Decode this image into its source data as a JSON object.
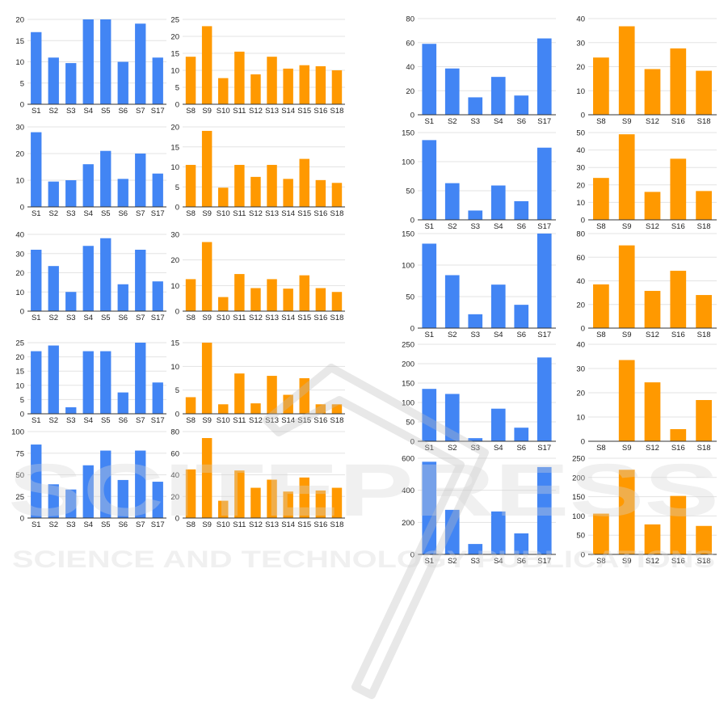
{
  "watermark": {
    "logo_text": "SCITEPRESS",
    "tagline": "SCIENCE AND TECHNOLOGY PUBLICATIONS"
  },
  "colors": {
    "blue": "#4285f4",
    "orange": "#ff9900",
    "grid": "#e3e3e3",
    "axis": "#333333",
    "text": "#222222"
  },
  "chart_data": [
    {
      "type": "bar",
      "color": "blue",
      "categories": [
        "S1",
        "S2",
        "S3",
        "S4",
        "S5",
        "S6",
        "S7",
        "S17"
      ],
      "values": [
        17,
        11,
        9.7,
        20,
        20,
        10,
        19,
        11
      ],
      "ylim": [
        0,
        20
      ],
      "yticks": [
        0,
        5,
        10,
        15,
        20
      ]
    },
    {
      "type": "bar",
      "color": "orange",
      "categories": [
        "S8",
        "S9",
        "S10",
        "S11",
        "S12",
        "S13",
        "S14",
        "S15",
        "S16",
        "S18"
      ],
      "values": [
        14,
        23,
        7.7,
        15.5,
        8.8,
        14,
        10.5,
        11.5,
        11.2,
        10
      ],
      "ylim": [
        0,
        25
      ],
      "yticks": [
        0,
        5,
        10,
        15,
        20,
        25
      ]
    },
    {
      "type": "bar",
      "color": "blue",
      "categories": [
        "S1",
        "S2",
        "S3",
        "S4",
        "S6",
        "S17"
      ],
      "values": [
        59,
        38.5,
        14.5,
        31.5,
        16,
        63.5
      ],
      "ylim": [
        0,
        80
      ],
      "yticks": [
        0,
        20,
        40,
        60,
        80
      ]
    },
    {
      "type": "bar",
      "color": "orange",
      "categories": [
        "S8",
        "S9",
        "S12",
        "S16",
        "S18"
      ],
      "values": [
        23.8,
        36.8,
        19,
        27.6,
        18.3
      ],
      "ylim": [
        0,
        40
      ],
      "yticks": [
        0,
        10,
        20,
        30,
        40
      ]
    },
    {
      "type": "bar",
      "color": "blue",
      "categories": [
        "S1",
        "S2",
        "S3",
        "S4",
        "S5",
        "S6",
        "S7",
        "S17"
      ],
      "values": [
        28,
        9.5,
        10,
        16,
        21,
        10.5,
        20,
        12.5
      ],
      "ylim": [
        0,
        30
      ],
      "yticks": [
        0,
        10,
        20,
        30
      ]
    },
    {
      "type": "bar",
      "color": "orange",
      "categories": [
        "S8",
        "S9",
        "S10",
        "S11",
        "S12",
        "S13",
        "S14",
        "S15",
        "S16",
        "S18"
      ],
      "values": [
        10.5,
        19,
        4.8,
        10.5,
        7.5,
        10.5,
        7,
        12,
        6.7,
        6
      ],
      "ylim": [
        0,
        20
      ],
      "yticks": [
        0,
        5,
        10,
        15,
        20
      ]
    },
    {
      "type": "bar",
      "color": "blue",
      "categories": [
        "S1",
        "S2",
        "S3",
        "S4",
        "S6",
        "S17"
      ],
      "values": [
        137,
        63,
        16,
        59,
        32,
        124
      ],
      "ylim": [
        0,
        150
      ],
      "yticks": [
        0,
        50,
        100,
        150
      ]
    },
    {
      "type": "bar",
      "color": "orange",
      "categories": [
        "S8",
        "S9",
        "S12",
        "S16",
        "S18"
      ],
      "values": [
        24,
        49,
        16,
        35,
        16.5
      ],
      "ylim": [
        0,
        50
      ],
      "yticks": [
        0,
        10,
        20,
        30,
        40,
        50
      ]
    },
    {
      "type": "bar",
      "color": "blue",
      "categories": [
        "S1",
        "S2",
        "S3",
        "S4",
        "S5",
        "S6",
        "S7",
        "S17"
      ],
      "values": [
        32,
        23.5,
        10,
        34,
        38,
        14,
        32,
        15.5
      ],
      "ylim": [
        0,
        40
      ],
      "yticks": [
        0,
        10,
        20,
        30,
        40
      ]
    },
    {
      "type": "bar",
      "color": "orange",
      "categories": [
        "S8",
        "S9",
        "S10",
        "S11",
        "S12",
        "S13",
        "S14",
        "S15",
        "S16",
        "S18"
      ],
      "values": [
        12.5,
        27,
        5.5,
        14.5,
        9,
        12.5,
        8.8,
        14,
        9,
        7.5
      ],
      "ylim": [
        0,
        30
      ],
      "yticks": [
        0,
        10,
        20,
        30
      ]
    },
    {
      "type": "bar",
      "color": "blue",
      "categories": [
        "S1",
        "S2",
        "S3",
        "S4",
        "S6",
        "S17"
      ],
      "values": [
        134,
        84,
        22,
        69,
        37,
        150
      ],
      "ylim": [
        0,
        150
      ],
      "yticks": [
        0,
        50,
        100,
        150
      ]
    },
    {
      "type": "bar",
      "color": "orange",
      "categories": [
        "S8",
        "S9",
        "S12",
        "S16",
        "S18"
      ],
      "values": [
        37,
        70,
        31.5,
        48.5,
        28
      ],
      "ylim": [
        0,
        80
      ],
      "yticks": [
        0,
        20,
        40,
        60,
        80
      ]
    },
    {
      "type": "bar",
      "color": "blue",
      "categories": [
        "S1",
        "S2",
        "S3",
        "S4",
        "S5",
        "S6",
        "S7",
        "S17"
      ],
      "values": [
        22,
        24,
        2.3,
        22,
        22,
        7.5,
        25,
        11
      ],
      "ylim": [
        0,
        25
      ],
      "yticks": [
        0,
        5,
        10,
        15,
        20,
        25
      ]
    },
    {
      "type": "bar",
      "color": "orange",
      "categories": [
        "S8",
        "S9",
        "S10",
        "S11",
        "S12",
        "S13",
        "S14",
        "S15",
        "S16",
        "S18"
      ],
      "values": [
        3.5,
        15,
        2,
        8.5,
        2.2,
        8,
        4,
        7.5,
        2,
        2
      ],
      "ylim": [
        0,
        15
      ],
      "yticks": [
        0,
        5,
        10,
        15
      ]
    },
    {
      "type": "bar",
      "color": "blue",
      "categories": [
        "S1",
        "S2",
        "S3",
        "S4",
        "S6",
        "S17"
      ],
      "values": [
        135,
        122,
        8,
        84,
        35,
        216
      ],
      "ylim": [
        0,
        250
      ],
      "yticks": [
        0,
        50,
        100,
        150,
        200,
        250
      ]
    },
    {
      "type": "bar",
      "color": "orange",
      "categories": [
        "S8",
        "S9",
        "S12",
        "S16",
        "S18"
      ],
      "values": [
        0,
        33.5,
        24.3,
        5,
        17
      ],
      "ylim": [
        0,
        40
      ],
      "yticks": [
        0,
        10,
        20,
        30,
        40
      ]
    },
    {
      "type": "bar",
      "color": "blue",
      "categories": [
        "S1",
        "S2",
        "S3",
        "S4",
        "S5",
        "S6",
        "S7",
        "S17"
      ],
      "values": [
        85,
        39,
        33,
        61,
        78,
        44,
        78,
        42
      ],
      "ylim": [
        0,
        100
      ],
      "yticks": [
        0,
        25,
        50,
        75,
        100
      ]
    },
    {
      "type": "bar",
      "color": "orange",
      "categories": [
        "S8",
        "S9",
        "S10",
        "S11",
        "S12",
        "S13",
        "S14",
        "S15",
        "S16",
        "S18"
      ],
      "values": [
        45,
        74,
        16,
        44,
        28,
        35.5,
        24.5,
        37.5,
        25.5,
        28
      ],
      "ylim": [
        0,
        80
      ],
      "yticks": [
        0,
        20,
        40,
        60,
        80
      ]
    },
    {
      "type": "bar",
      "color": "blue",
      "categories": [
        "S1",
        "S2",
        "S3",
        "S4",
        "S6",
        "S17"
      ],
      "values": [
        578,
        278,
        65,
        268,
        131,
        545
      ],
      "ylim": [
        0,
        600
      ],
      "yticks": [
        0,
        200,
        400,
        600
      ]
    },
    {
      "type": "bar",
      "color": "orange",
      "categories": [
        "S8",
        "S9",
        "S12",
        "S16",
        "S18"
      ],
      "values": [
        106,
        220,
        78,
        152,
        74
      ],
      "ylim": [
        0,
        250
      ],
      "yticks": [
        0,
        50,
        100,
        150,
        200,
        250
      ]
    }
  ]
}
